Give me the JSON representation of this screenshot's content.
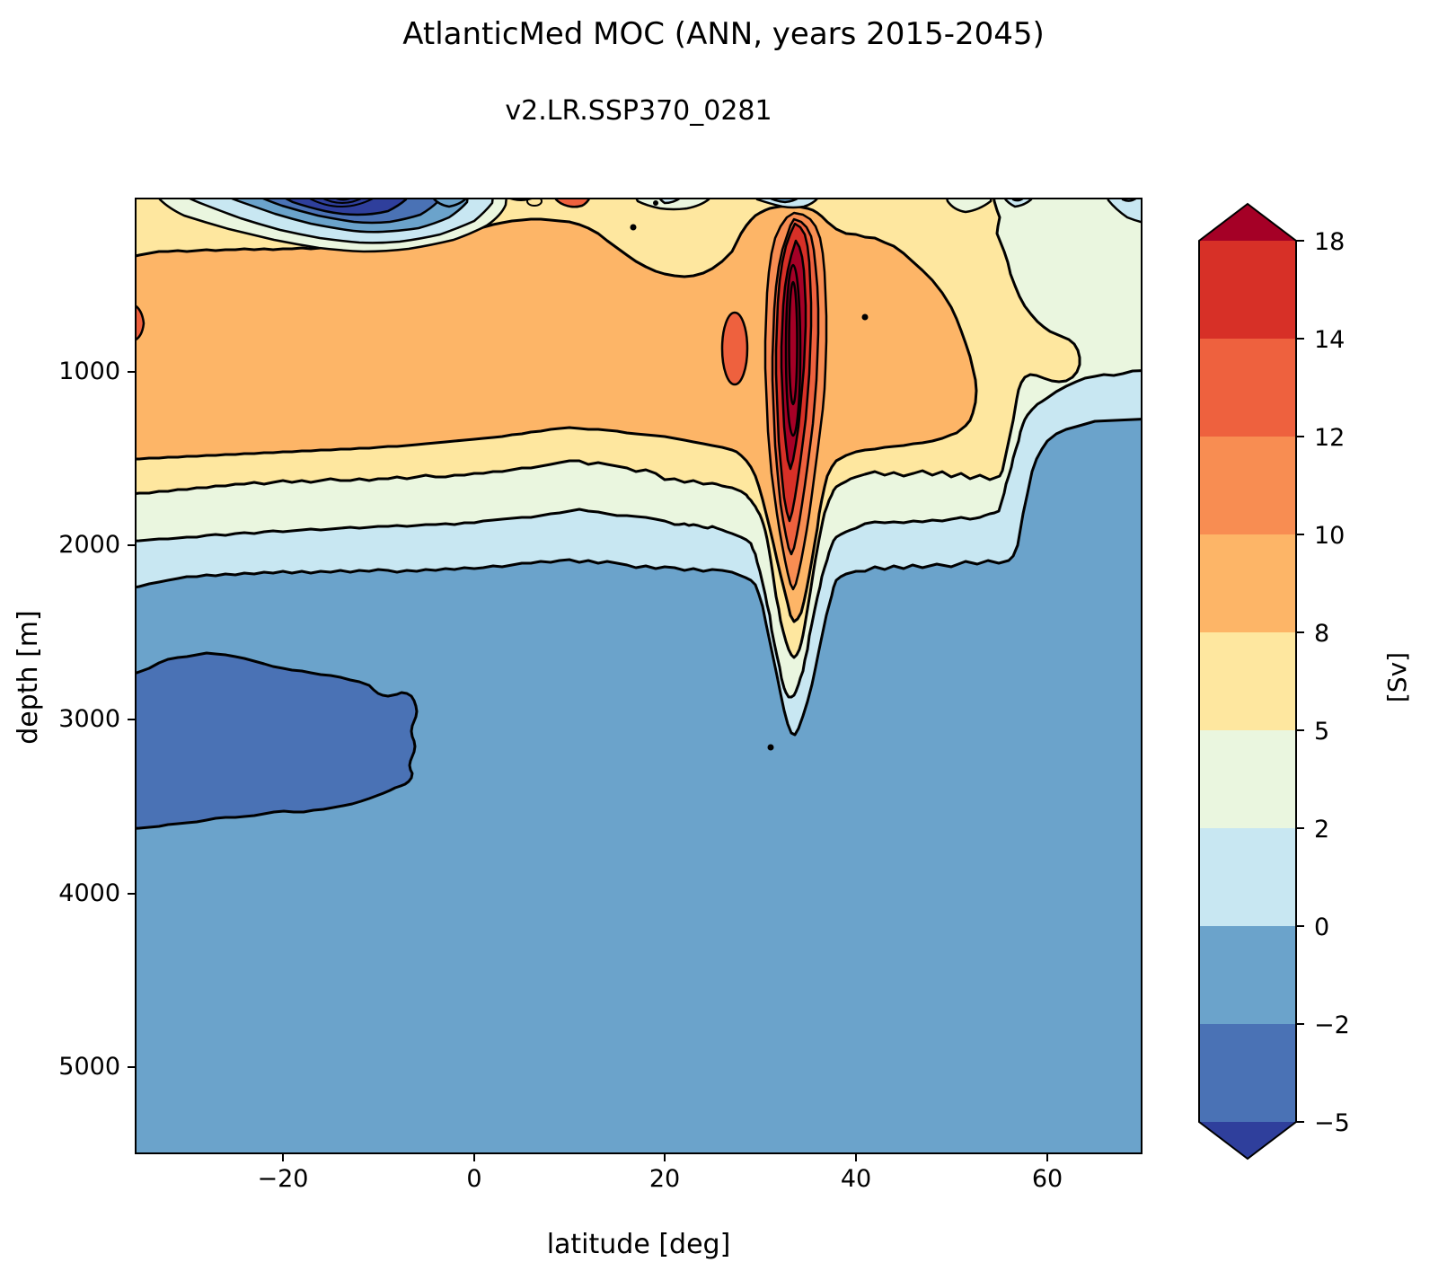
{
  "chart_data": {
    "type": "heatmap",
    "subtype": "filled_contour_section",
    "title": "AtlanticMed MOC (ANN, years 2015-2045)",
    "subtitle": "v2.LR.SSP370_0281",
    "xlabel": "latitude [deg]",
    "ylabel": "depth [m]",
    "units": "Sv",
    "x_range_deg": [
      -35.5,
      70
    ],
    "depth_range_m": [
      0,
      5400
    ],
    "xtick_labels": [
      "−20",
      "0",
      "20",
      "40",
      "60"
    ],
    "ytick_labels": [
      "1000",
      "2000",
      "3000",
      "4000",
      "5000"
    ],
    "contour_levels_sv": [
      -5,
      -2,
      0,
      2,
      5,
      8,
      10,
      12,
      14,
      18
    ],
    "contour_line_color": "#000000",
    "colorbar": {
      "label": "[Sv]",
      "extend": "both",
      "tick_labels": [
        "18",
        "14",
        "12",
        "10",
        "8",
        "5",
        "2",
        "0",
        "−2",
        "−5"
      ],
      "band_keys": [
        "b14_18",
        "b12_14",
        "b10_12",
        "b8_10",
        "b5_8",
        "b2_5",
        "b0_2",
        "bn2_0",
        "bn5_n2"
      ]
    },
    "band_colors": {
      "gt18": "#a50026",
      "b14_18": "#d73027",
      "b12_14": "#ee613e",
      "b10_12": "#f88d52",
      "b8_10": "#fdb567",
      "b5_8": "#fee79f",
      "b2_5": "#eaf6df",
      "b0_2": "#c8e7f2",
      "bn2_0": "#6ba3cb",
      "bn5_n2": "#4a72b5",
      "ltn5": "#2f3f9c"
    },
    "features": [
      {
        "name": "upper overturning cell maximum",
        "lat_deg": 34,
        "depth_m": [
          200,
          1800
        ],
        "value_sv": "> 18"
      },
      {
        "name": "deep-reaching positive plume",
        "lat_deg": 33,
        "depth_m": [
          100,
          3100
        ],
        "value_sv": "2 to > 18"
      },
      {
        "name": "shallow tropical negative cell",
        "lat_deg": [
          -27,
          -8
        ],
        "depth_m": [
          0,
          150
        ],
        "value_sv": "< -5"
      },
      {
        "name": "mid-depth negative anomaly",
        "lat_deg": [
          -35,
          -4
        ],
        "depth_m": [
          2600,
          3600
        ],
        "value_sv": "-5 to -2"
      },
      {
        "name": "abyssal background",
        "value_sv": "-2 to 0"
      },
      {
        "name": "upper-ocean positive cell",
        "depth_m": [
          0,
          2200
        ],
        "value_sv": "0 to 10"
      }
    ]
  }
}
